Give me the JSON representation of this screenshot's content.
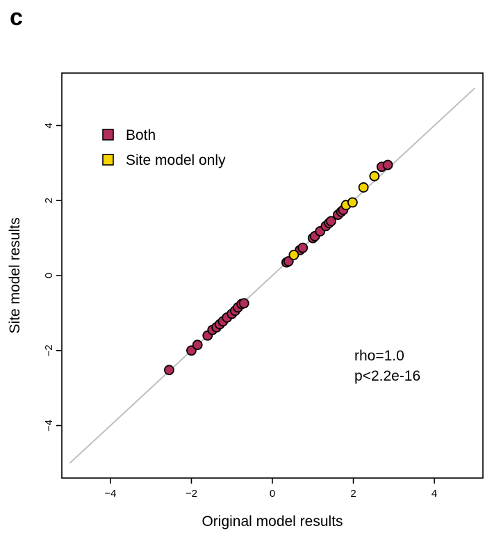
{
  "panel_label": "c",
  "colors": {
    "both": "#b22d5b",
    "site_only": "#f5d300",
    "identity_line": "#bfbfbf",
    "point_edge": "#000000"
  },
  "chart_data": {
    "type": "scatter",
    "title": "",
    "xlabel": "Original model results",
    "ylabel": "Site model results",
    "xlim": [
      -5.2,
      5.2
    ],
    "ylim": [
      -5.4,
      5.4
    ],
    "xticks": [
      -4,
      -2,
      0,
      2,
      4
    ],
    "yticks": [
      -4,
      -2,
      0,
      2,
      4
    ],
    "xtick_labels": [
      "−4",
      "−2",
      "0",
      "2",
      "4"
    ],
    "ytick_labels": [
      "−4",
      "−2",
      "0",
      "2",
      "4"
    ],
    "grid": false,
    "legend_position": "top-left",
    "reference_line": {
      "from": [
        -5,
        -5
      ],
      "to": [
        5,
        5
      ]
    },
    "annotations": [
      "rho=1.0",
      "p<2.2e-16"
    ],
    "series": [
      {
        "name": "Both",
        "points": [
          [
            -2.55,
            -2.52
          ],
          [
            -2.0,
            -2.0
          ],
          [
            -1.85,
            -1.85
          ],
          [
            -1.6,
            -1.6
          ],
          [
            -1.48,
            -1.45
          ],
          [
            -1.38,
            -1.38
          ],
          [
            -1.3,
            -1.3
          ],
          [
            -1.22,
            -1.22
          ],
          [
            -1.12,
            -1.12
          ],
          [
            -1.0,
            -1.02
          ],
          [
            -0.92,
            -0.94
          ],
          [
            -0.85,
            -0.85
          ],
          [
            -0.76,
            -0.76
          ],
          [
            -0.7,
            -0.74
          ],
          [
            0.35,
            0.35
          ],
          [
            0.4,
            0.38
          ],
          [
            0.68,
            0.68
          ],
          [
            0.75,
            0.74
          ],
          [
            1.0,
            1.0
          ],
          [
            1.05,
            1.05
          ],
          [
            1.18,
            1.18
          ],
          [
            1.32,
            1.32
          ],
          [
            1.4,
            1.4
          ],
          [
            1.45,
            1.45
          ],
          [
            1.62,
            1.62
          ],
          [
            1.7,
            1.7
          ],
          [
            1.75,
            1.75
          ],
          [
            2.7,
            2.9
          ],
          [
            2.85,
            2.95
          ]
        ]
      },
      {
        "name": "Site model only",
        "points": [
          [
            0.53,
            0.55
          ],
          [
            1.82,
            1.88
          ],
          [
            1.98,
            1.95
          ],
          [
            2.25,
            2.35
          ],
          [
            2.52,
            2.65
          ]
        ]
      }
    ]
  }
}
